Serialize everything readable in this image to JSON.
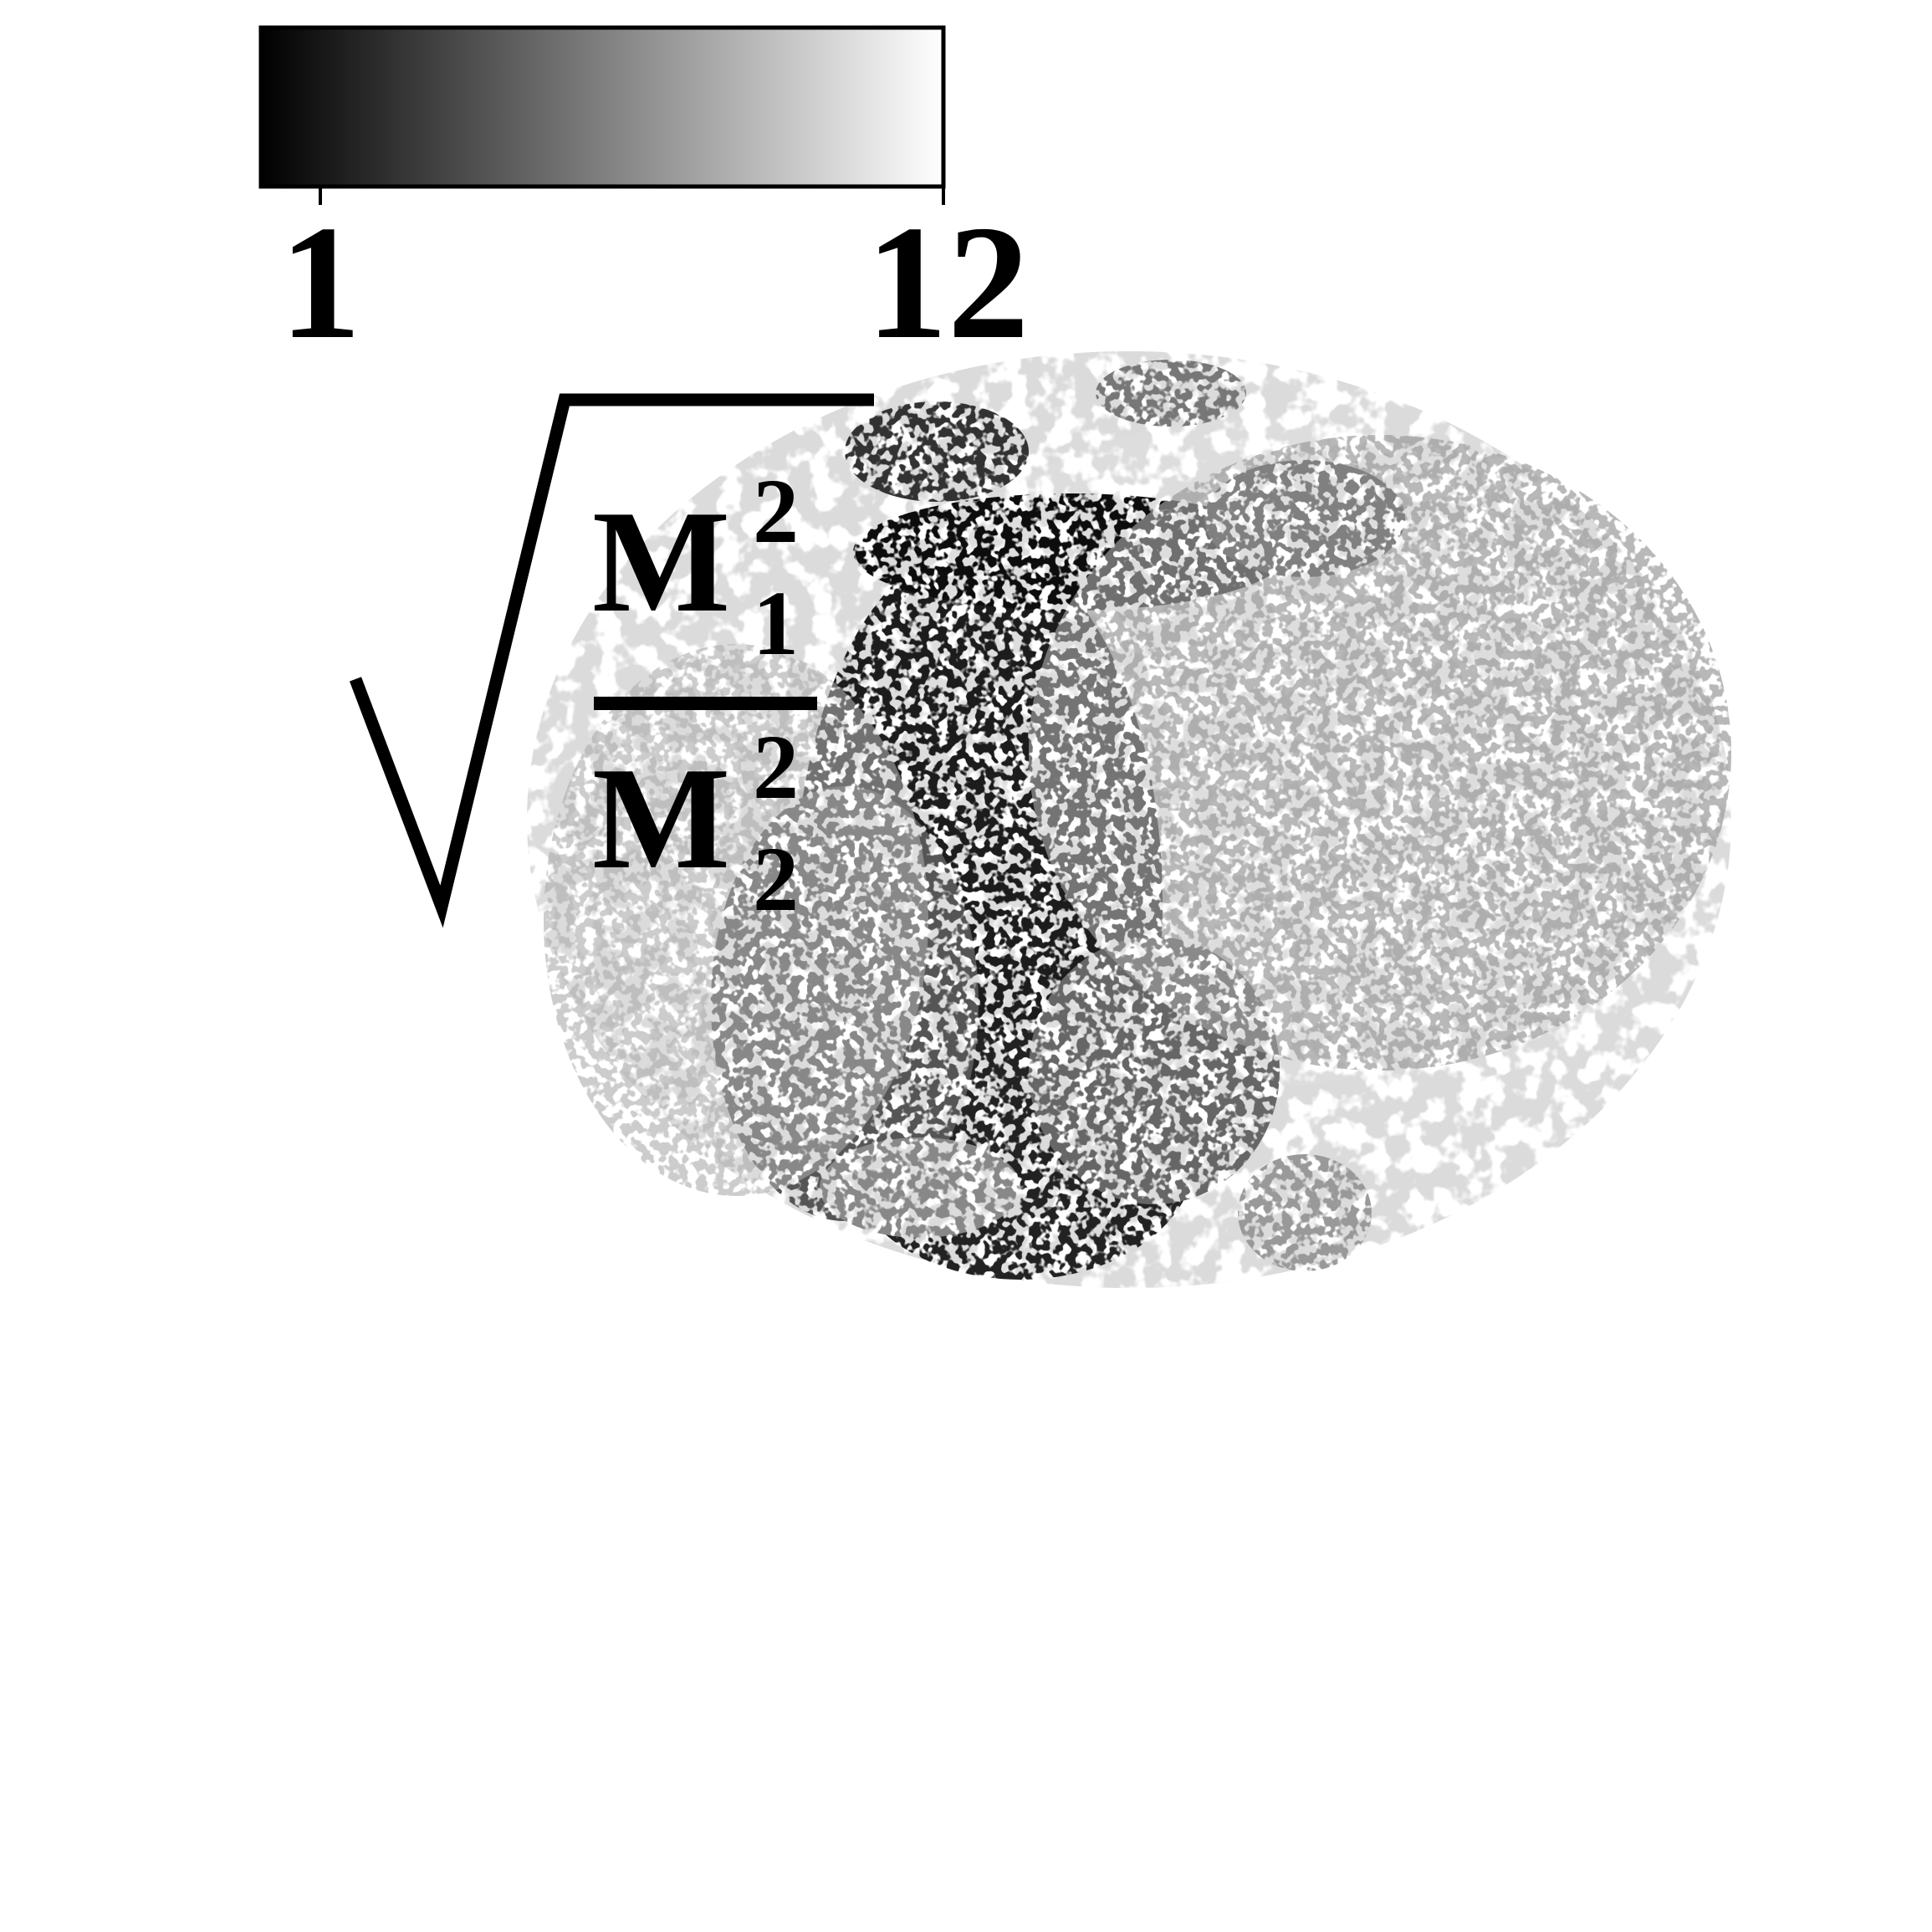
{
  "colorbar": {
    "min_label": "1",
    "max_label": "12",
    "min_value": 1,
    "max_value": 12,
    "color_low": "#000000",
    "color_high": "#ffffff"
  },
  "quantity_label": {
    "numerator_base": "M",
    "numerator_sup": "2",
    "numerator_sub": "1",
    "denominator_base": "M",
    "denominator_sup": "2",
    "denominator_sub": "2"
  },
  "colors": {
    "background": "#ffffff",
    "ink": "#000000"
  }
}
